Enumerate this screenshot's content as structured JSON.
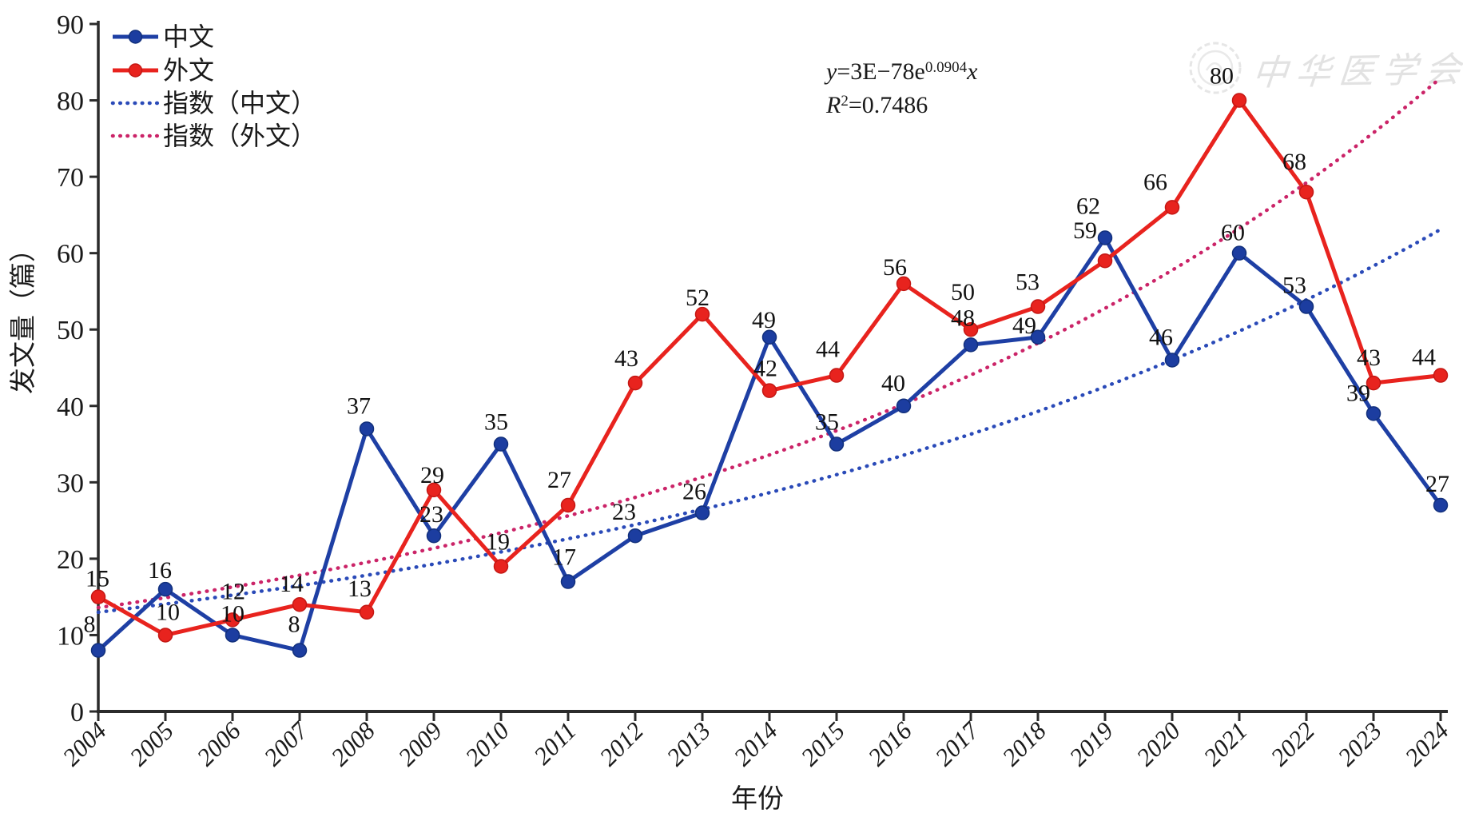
{
  "figure": {
    "y_axis_title": "发文量（篇）",
    "x_axis_title": "年份",
    "equation_line1": {
      "pre": "y",
      "eq": "=3E−78e",
      "sup": "0.0904",
      "var": "x"
    },
    "equation_line2": {
      "base": "R",
      "sup": "2",
      "rest": "=0.7486"
    },
    "watermark_text": "中华医学会"
  },
  "chart_data": {
    "type": "line",
    "title": "",
    "xlabel": "年份",
    "ylabel": "发文量（篇）",
    "categories": [
      2004,
      2005,
      2006,
      2007,
      2008,
      2009,
      2010,
      2011,
      2012,
      2013,
      2014,
      2015,
      2016,
      2017,
      2018,
      2019,
      2020,
      2021,
      2022,
      2023,
      2024
    ],
    "ylim": [
      0,
      90
    ],
    "ytick_step": 10,
    "grid": false,
    "legend_position": "top-left",
    "series": [
      {
        "name": "中文",
        "kind": "line",
        "color": "#1e3fa4",
        "marker_fill": "#1c3da0",
        "marker_stroke": "#12307c",
        "marker": "circle",
        "values": [
          8,
          16,
          10,
          8,
          37,
          23,
          35,
          17,
          23,
          26,
          49,
          35,
          40,
          48,
          49,
          62,
          46,
          60,
          53,
          39,
          27
        ]
      },
      {
        "name": "外文",
        "kind": "line",
        "color": "#e8231e",
        "marker_fill": "#e8231e",
        "marker_stroke": "#c41814",
        "marker": "circle",
        "values": [
          15,
          10,
          12,
          14,
          13,
          29,
          19,
          27,
          43,
          52,
          42,
          44,
          56,
          50,
          53,
          59,
          66,
          80,
          68,
          43,
          44
        ]
      },
      {
        "name": "指数（中文）",
        "kind": "exponential_trend",
        "style": "dotted",
        "color": "#2a4ab8",
        "a": 13.0,
        "b": 0.079
      },
      {
        "name": "指数（外文）",
        "kind": "exponential_trend",
        "style": "dotted",
        "color": "#cb2468",
        "a": 13.6,
        "b": 0.0904
      }
    ],
    "annotations": {
      "trend_equation": "y=3E−78e0.0904x",
      "r_squared": "R2=0.7486"
    },
    "watermark": "中华医学会"
  }
}
